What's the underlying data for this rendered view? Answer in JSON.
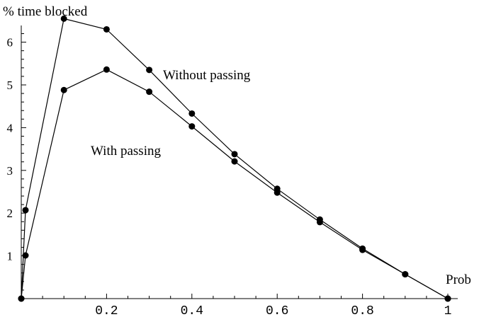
{
  "chart_data": {
    "type": "line",
    "title": "",
    "xlabel": "Prob",
    "ylabel": "% time blocked",
    "xlim": [
      0,
      1
    ],
    "ylim": [
      0,
      6.6
    ],
    "x_ticks": [
      0.2,
      0.4,
      0.6,
      0.8,
      1
    ],
    "x_tick_labels": [
      "0.2",
      "0.4",
      "0.6",
      "0.8",
      "1"
    ],
    "y_ticks": [
      1,
      2,
      3,
      4,
      5,
      6
    ],
    "y_tick_labels": [
      "1",
      "2",
      "3",
      "4",
      "5",
      "6"
    ],
    "grid": false,
    "legend": "none",
    "series": [
      {
        "name": "Without passing",
        "x": [
          0,
          0.01,
          0.1,
          0.2,
          0.3,
          0.4,
          0.5,
          0.6,
          0.7,
          0.8,
          0.9,
          1
        ],
        "y": [
          0,
          2.07,
          6.55,
          6.3,
          5.35,
          4.33,
          3.38,
          2.57,
          1.85,
          1.17,
          0.57,
          0
        ]
      },
      {
        "name": "With passing",
        "x": [
          0,
          0.01,
          0.1,
          0.2,
          0.3,
          0.4,
          0.5,
          0.6,
          0.7,
          0.8,
          0.9,
          1
        ],
        "y": [
          0,
          1.01,
          4.88,
          5.36,
          4.84,
          4.03,
          3.21,
          2.48,
          1.79,
          1.14,
          0.57,
          0
        ]
      }
    ],
    "annotations": [
      {
        "text": "Without passing",
        "x": 0.4,
        "y": 5.7
      },
      {
        "text": "With passing",
        "x": 0.25,
        "y": 4.15
      }
    ],
    "colors": {
      "line": "#000000",
      "marker": "#000000",
      "axis": "#000000"
    }
  }
}
